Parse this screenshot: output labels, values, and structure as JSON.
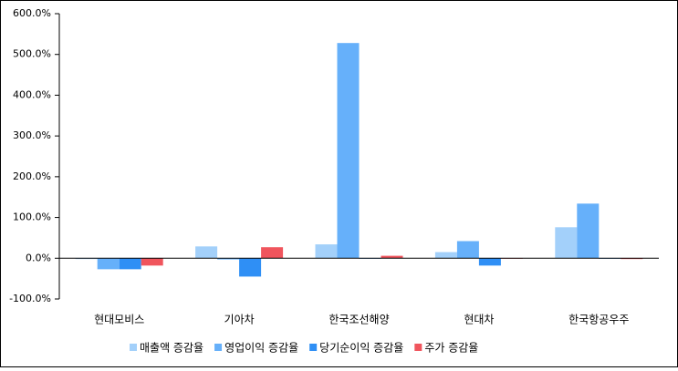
{
  "chart_data": {
    "type": "bar",
    "categories": [
      "현대모비스",
      "기아차",
      "한국조선해양",
      "현대차",
      "한국항공우주"
    ],
    "series": [
      {
        "name": "매출액 증감율",
        "color": "#a3d0fa",
        "values": [
          -2,
          29,
          34,
          15,
          76
        ]
      },
      {
        "name": "영업이익 증감율",
        "color": "#66b0fa",
        "values": [
          -27,
          -3,
          528,
          42,
          134
        ]
      },
      {
        "name": "당기순이익 증감율",
        "color": "#2f8ff5",
        "values": [
          -27,
          -45,
          0,
          -18,
          0
        ]
      },
      {
        "name": "주가 증감율",
        "color": "#f0555d",
        "values": [
          -18,
          27,
          6,
          0,
          -2
        ]
      }
    ],
    "ylim": [
      -100,
      600
    ],
    "yticks": [
      {
        "value": -100,
        "label": "-100.0%"
      },
      {
        "value": 0,
        "label": "0.0%"
      },
      {
        "value": 100,
        "label": "100.0%"
      },
      {
        "value": 200,
        "label": "200.0%"
      },
      {
        "value": 300,
        "label": "300.0%"
      },
      {
        "value": 400,
        "label": "400.0%"
      },
      {
        "value": 500,
        "label": "500.0%"
      },
      {
        "value": 600,
        "label": "600.0%"
      }
    ],
    "legend": "bottom"
  }
}
